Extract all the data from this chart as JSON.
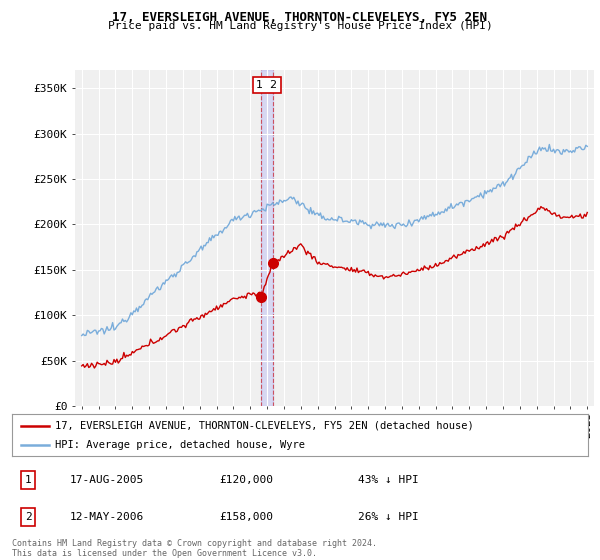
{
  "title": "17, EVERSLEIGH AVENUE, THORNTON-CLEVELEYS, FY5 2EN",
  "subtitle": "Price paid vs. HM Land Registry's House Price Index (HPI)",
  "ylabel_ticks": [
    "£0",
    "£50K",
    "£100K",
    "£150K",
    "£200K",
    "£250K",
    "£300K",
    "£350K"
  ],
  "ytick_vals": [
    0,
    50000,
    100000,
    150000,
    200000,
    250000,
    300000,
    350000
  ],
  "ylim": [
    0,
    370000
  ],
  "xlim_start": 1994.6,
  "xlim_end": 2025.4,
  "sale1_x": 2005.62,
  "sale1_y": 120000,
  "sale1_label": "1",
  "sale2_x": 2006.37,
  "sale2_y": 158000,
  "sale2_label": "2",
  "sale_color": "#cc0000",
  "hpi_color": "#7aaddb",
  "vline_color": "#cc0000",
  "legend_line1": "17, EVERSLEIGH AVENUE, THORNTON-CLEVELEYS, FY5 2EN (detached house)",
  "legend_line2": "HPI: Average price, detached house, Wyre",
  "table_rows": [
    {
      "num": "1",
      "date": "17-AUG-2005",
      "price": "£120,000",
      "hpi": "43% ↓ HPI"
    },
    {
      "num": "2",
      "date": "12-MAY-2006",
      "price": "£158,000",
      "hpi": "26% ↓ HPI"
    }
  ],
  "footer": "Contains HM Land Registry data © Crown copyright and database right 2024.\nThis data is licensed under the Open Government Licence v3.0.",
  "background_color": "#ffffff",
  "plot_bg_color": "#f0f0f0"
}
